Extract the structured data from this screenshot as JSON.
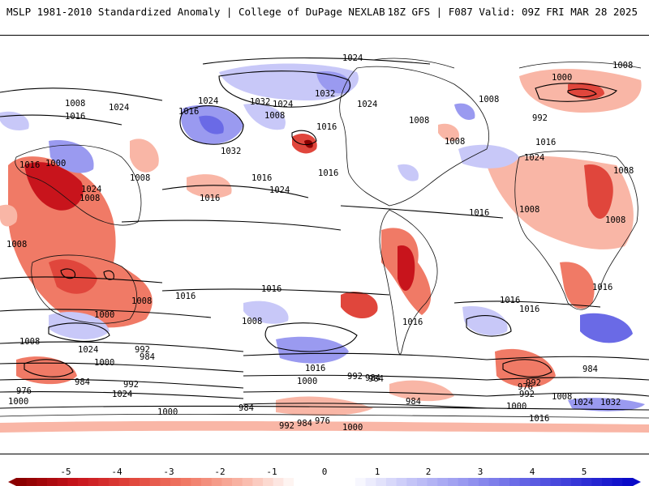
{
  "header": {
    "title": "MSLP 1981-2010 Standardized Anomaly | College of DuPage NEXLAB",
    "run_info": "18Z GFS | F087 Valid: 09Z FRI MAR 28 2025"
  },
  "colors": {
    "neg5": "#8b0000",
    "neg4": "#c8141c",
    "neg3": "#e0463c",
    "neg2": "#f07a66",
    "neg1": "#f9b6a6",
    "zero": "#ffffff",
    "pos1": "#c8c8f8",
    "pos2": "#9a9af0",
    "pos3": "#6a6ae6",
    "pos4": "#3a3ad8",
    "pos5": "#0a0ac8"
  },
  "colorbar": {
    "ticks": [
      "-5",
      "-4",
      "-3",
      "-2",
      "-1",
      "0",
      "1",
      "2",
      "3",
      "4",
      "5"
    ]
  },
  "isobar_labels": [
    "1024",
    "1008",
    "1008",
    "1024",
    "1016",
    "1024",
    "1032",
    "1024",
    "1032",
    "1024",
    "1016",
    "1008",
    "1016",
    "1032",
    "1000",
    "1008",
    "992",
    "1008",
    "1016",
    "1000",
    "1024",
    "1008",
    "1008",
    "1016",
    "1024",
    "1016",
    "1016",
    "1008",
    "1016",
    "1024",
    "1008",
    "1016",
    "1008",
    "1008",
    "1016",
    "1016",
    "1016",
    "1016",
    "1008",
    "1016",
    "1008",
    "1000",
    "1008",
    "1024",
    "1008",
    "992",
    "1000",
    "984",
    "992",
    "984",
    "1016",
    "1024",
    "992",
    "984",
    "1000",
    "976",
    "1000",
    "984",
    "984",
    "992",
    "984",
    "976",
    "1000",
    "1024",
    "1032",
    "1008",
    "1016",
    "976",
    "1000",
    "984",
    "992",
    "984",
    "992",
    "1000",
    "1016"
  ]
}
